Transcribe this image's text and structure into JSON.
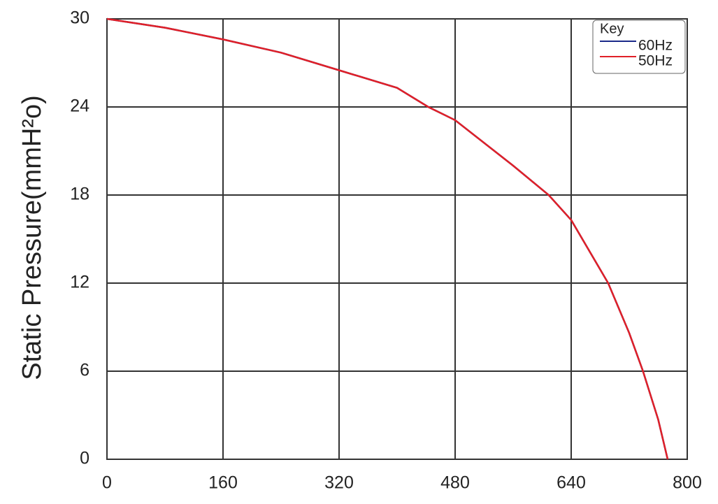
{
  "chart_data": {
    "type": "line",
    "x": [
      0,
      80,
      160,
      240,
      320,
      400,
      443,
      480,
      560,
      609,
      640,
      691,
      720,
      739,
      760,
      773
    ],
    "series": [
      {
        "name": "60Hz",
        "color": "#1b2a8a",
        "values": [
          30,
          29.4,
          28.6,
          27.7,
          26.5,
          25.3,
          24,
          23.1,
          20,
          18,
          16.3,
          12,
          8.6,
          6,
          2.7,
          0
        ]
      },
      {
        "name": "50Hz",
        "color": "#e02028",
        "values": [
          30,
          29.4,
          28.6,
          27.7,
          26.5,
          25.3,
          24,
          23.1,
          20,
          18,
          16.3,
          12,
          8.6,
          6,
          2.7,
          0
        ]
      }
    ],
    "y_label": "Static Pressure(mmH²o)",
    "legend_title": "Key",
    "legend": "top-right",
    "xlim": [
      0,
      800
    ],
    "xticks": [
      0,
      160,
      320,
      480,
      640,
      800
    ],
    "ylim": [
      0,
      30
    ],
    "yticks": [
      0,
      6,
      12,
      18,
      24,
      30
    ],
    "grid": true
  }
}
